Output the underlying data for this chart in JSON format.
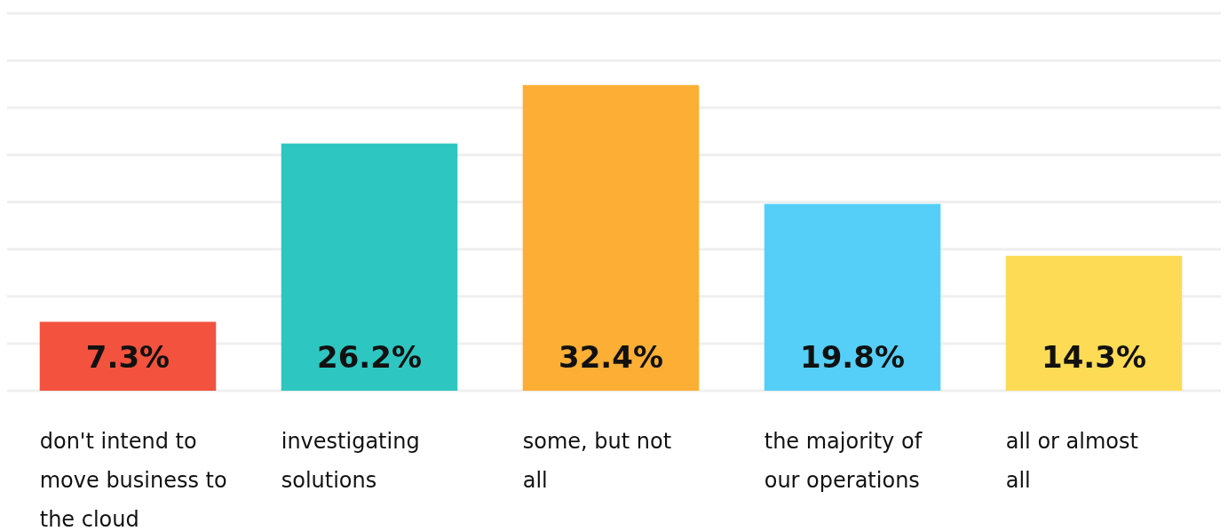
{
  "chart_data": {
    "type": "bar",
    "categories": [
      "don't intend to move business to the cloud",
      "investigating solutions",
      "some, but not all",
      "the majority of our operations",
      "all or almost all"
    ],
    "values": [
      7.3,
      26.2,
      32.4,
      19.8,
      14.3
    ],
    "value_labels": [
      "7.3%",
      "26.2%",
      "32.4%",
      "19.8%",
      "14.3%"
    ],
    "colors": [
      "#f2523e",
      "#2ec6c1",
      "#fdaf35",
      "#55cff7",
      "#fedb55"
    ],
    "ylim": [
      0,
      40
    ],
    "yticks": [
      {
        "value": 0,
        "label": null
      },
      {
        "value": 5,
        "label": null
      },
      {
        "value": 10,
        "label": null
      },
      {
        "value": 15,
        "label": null
      },
      {
        "value": 20,
        "label": null
      },
      {
        "value": 25,
        "label": null
      },
      {
        "value": 30,
        "label": null
      },
      {
        "value": 35,
        "label": null
      },
      {
        "value": 40,
        "label": null
      }
    ],
    "grid": true
  }
}
